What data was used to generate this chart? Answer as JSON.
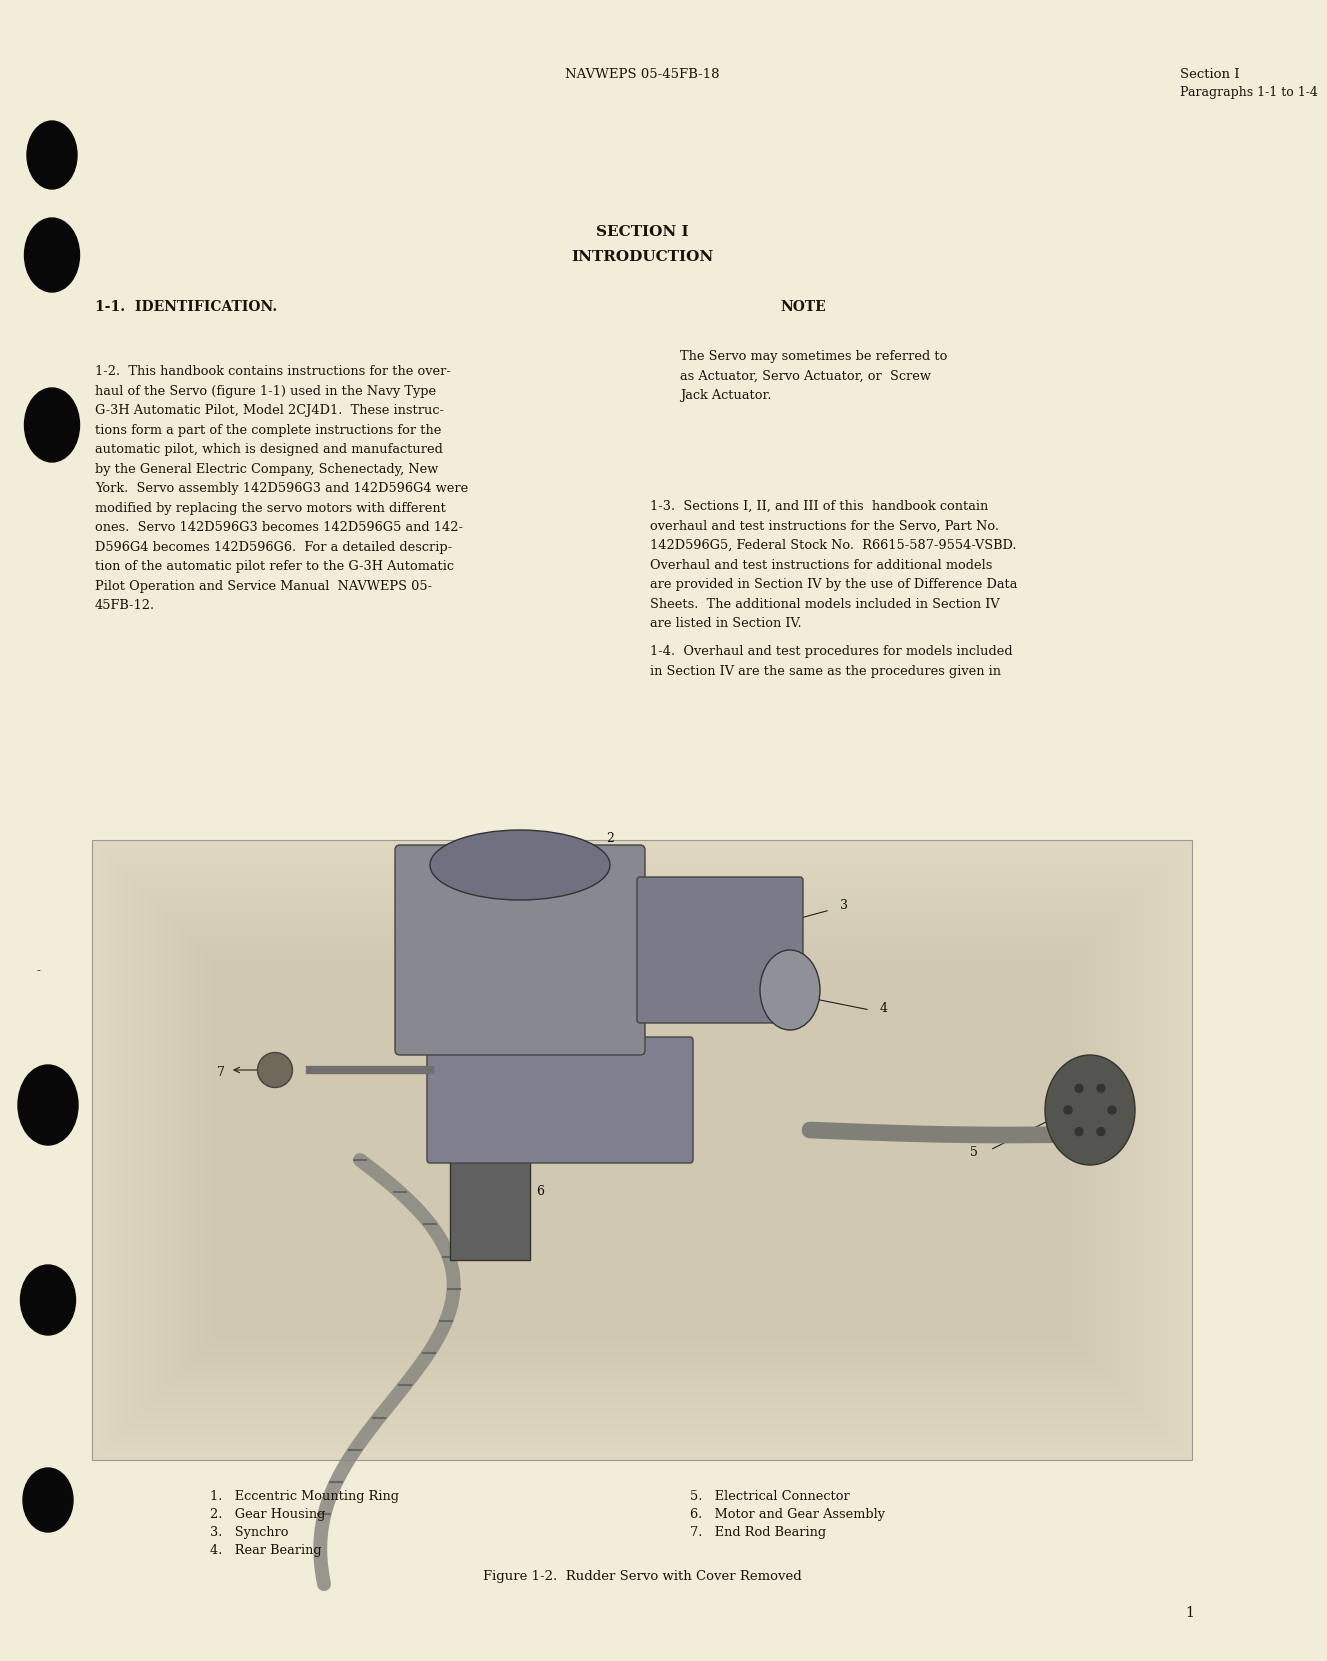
{
  "bg_color": "#f2edd8",
  "text_color": "#1a120a",
  "header_left": "NAVWEPS 05-45FB-18",
  "header_right_line1": "Section I",
  "header_right_line2": "Paragraphs 1-1 to 1-4",
  "section_title": "SECTION I",
  "section_subtitle": "INTRODUCTION",
  "heading1": "1-1.  IDENTIFICATION.",
  "heading_note": "NOTE",
  "para1_2_lines": [
    "1-2.  This handbook contains instructions for the over-",
    "haul of the Servo (figure 1-1) used in the Navy Type",
    "G-3H Automatic Pilot, Model 2CJ4D1.  These instruc-",
    "tions form a part of the complete instructions for the",
    "automatic pilot, which is designed and manufactured",
    "by the General Electric Company, Schenectady, New",
    "York.  Servo assembly 142D596G3 and 142D596G4 were",
    "modified by replacing the servo motors with different",
    "ones.  Servo 142D596G3 becomes 142D596G5 and 142-",
    "D596G4 becomes 142D596G6.  For a detailed descrip-",
    "tion of the automatic pilot refer to the G-3H Automatic",
    "Pilot Operation and Service Manual  NAVWEPS 05-",
    "45FB-12."
  ],
  "note_lines": [
    "The Servo may sometimes be referred to",
    "as Actuator, Servo Actuator, or  Screw",
    "Jack Actuator."
  ],
  "para1_3_lines": [
    "1-3.  Sections I, II, and III of this  handbook contain",
    "overhaul and test instructions for the Servo, Part No.",
    "142D596G5, Federal Stock No.  R6615-587-9554-VSBD.",
    "Overhaul and test instructions for additional models",
    "are provided in Section IV by the use of Difference Data",
    "Sheets.  The additional models included in Section IV",
    "are listed in Section IV."
  ],
  "para1_4_lines": [
    "1-4.  Overhaul and test procedures for models included",
    "in Section IV are the same as the procedures given in"
  ],
  "cap_left_lines": [
    "1.   Eccentric Mounting Ring",
    "2.   Gear Housing",
    "3.   Synchro",
    "4.   Rear Bearing"
  ],
  "cap_right_lines": [
    "5.   Electrical Connector",
    "6.   Motor and Gear Assembly",
    "7.   End Rod Bearing"
  ],
  "figure_caption": "Figure 1-2.  Rudder Servo with Cover Removed",
  "page_number": "1",
  "img_photo_bg": "#c8c0a8",
  "img_border_color": "#aaa898"
}
